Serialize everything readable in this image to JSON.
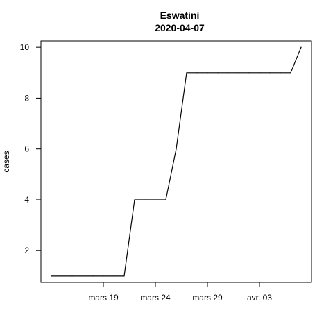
{
  "chart_data": {
    "type": "line",
    "title": "Eswatini",
    "subtitle": "2020-04-07",
    "xlabel": "",
    "ylabel": "cases",
    "x": [
      "2020-03-14",
      "2020-03-15",
      "2020-03-16",
      "2020-03-17",
      "2020-03-18",
      "2020-03-19",
      "2020-03-20",
      "2020-03-21",
      "2020-03-22",
      "2020-03-23",
      "2020-03-24",
      "2020-03-25",
      "2020-03-26",
      "2020-03-27",
      "2020-03-28",
      "2020-03-29",
      "2020-03-30",
      "2020-03-31",
      "2020-04-01",
      "2020-04-02",
      "2020-04-03",
      "2020-04-04",
      "2020-04-05",
      "2020-04-06",
      "2020-04-07"
    ],
    "series": [
      {
        "values": [
          1,
          1,
          1,
          1,
          1,
          1,
          1,
          1,
          4,
          4,
          4,
          4,
          6,
          9,
          9,
          9,
          9,
          9,
          9,
          9,
          9,
          9,
          9,
          9,
          10
        ]
      }
    ],
    "xlim": [
      "2020-03-13",
      "2020-04-08"
    ],
    "ylim": [
      0.75,
      10.25
    ],
    "x_ticks": [
      {
        "date": "2020-03-19",
        "label": "mars 19"
      },
      {
        "date": "2020-03-24",
        "label": "mars 24"
      },
      {
        "date": "2020-03-29",
        "label": "mars 29"
      },
      {
        "date": "2020-04-03",
        "label": "avr. 03"
      }
    ],
    "y_ticks": [
      2,
      4,
      6,
      8,
      10
    ],
    "grid": false,
    "line_color": "#000000"
  }
}
